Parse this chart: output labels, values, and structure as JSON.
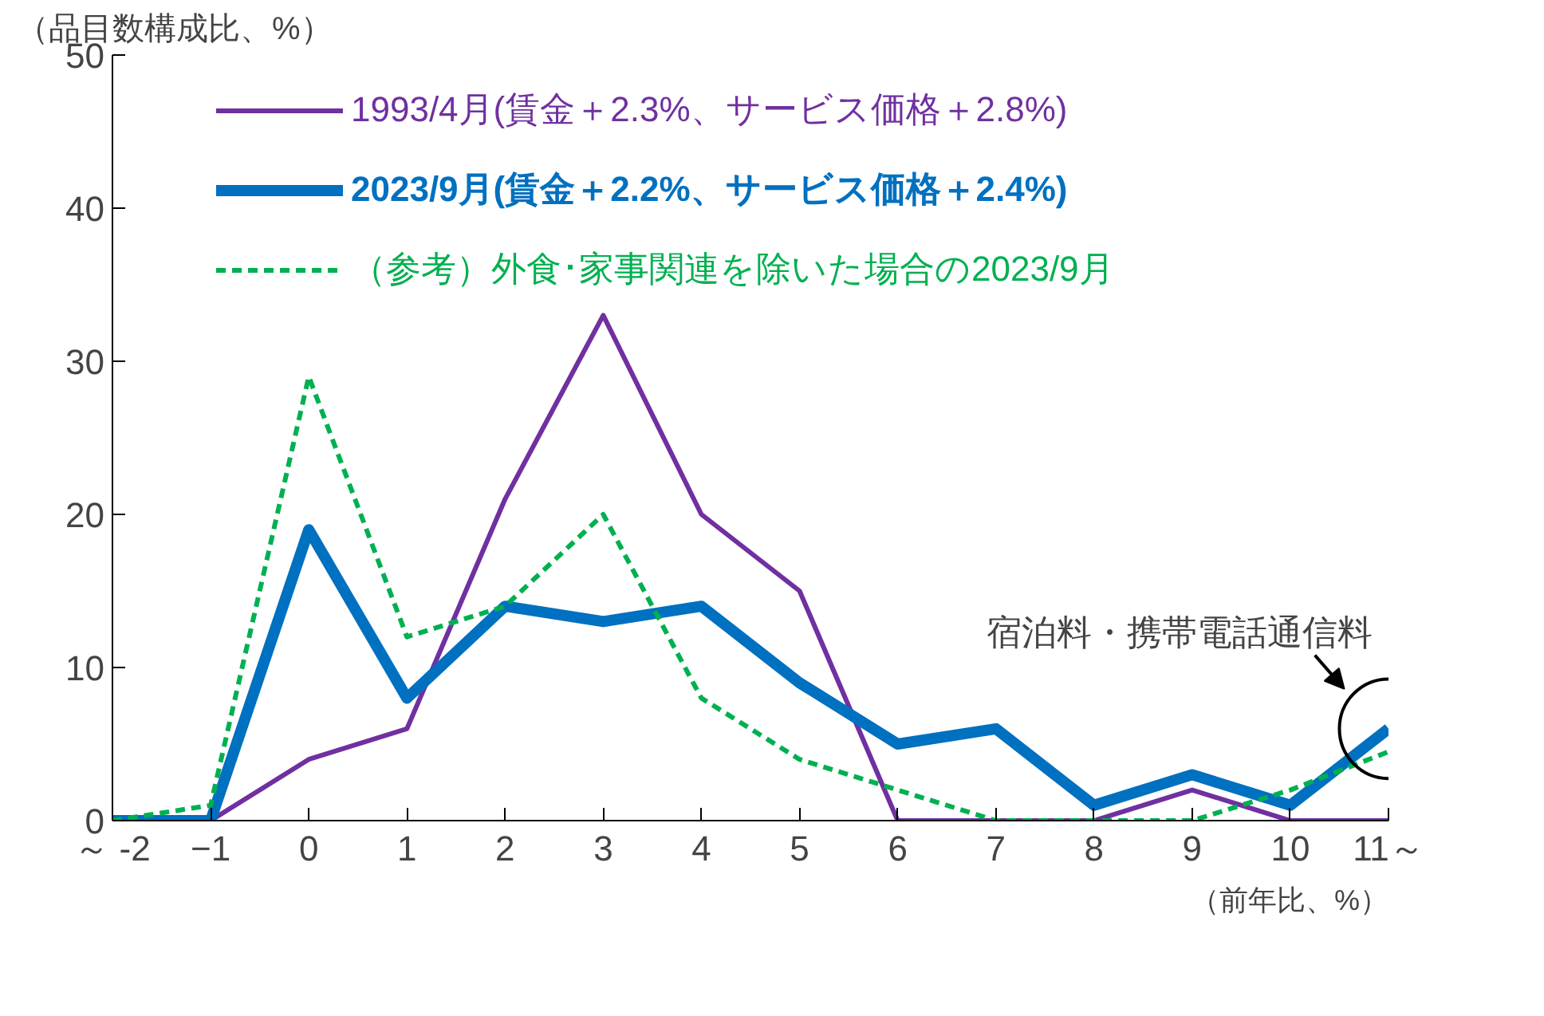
{
  "chart_data": {
    "type": "line",
    "title": "（品目数構成比、%）",
    "xlabel": "（前年比、%）",
    "x": [
      -2,
      -1,
      0,
      1,
      2,
      3,
      4,
      5,
      6,
      7,
      8,
      9,
      10,
      11
    ],
    "series": [
      {
        "name": "1993/4月(賃金＋2.3%、サービス価格＋2.8%)",
        "color": "#7030a0",
        "values": [
          0,
          0,
          4,
          6,
          21,
          33,
          20,
          15,
          0,
          0,
          0,
          2,
          0,
          0
        ]
      },
      {
        "name": "2023/9月(賃金＋2.2%、サービス価格＋2.4%)",
        "color": "#0070c0",
        "values": [
          0,
          0,
          19,
          8,
          14,
          13,
          14,
          9,
          5,
          6,
          1,
          3,
          1,
          6
        ]
      },
      {
        "name": "（参考）外食･家事関連を除いた場合の2023/9月",
        "color": "#00b050",
        "line_style": "dashed",
        "values": [
          0,
          1,
          29,
          12,
          14,
          20,
          8,
          4,
          2,
          0,
          0,
          0,
          2,
          4.5
        ]
      }
    ],
    "xlim": [
      -2,
      11
    ],
    "ylim": [
      0,
      50
    ],
    "xticks": [
      {
        "value": -2,
        "label": "～ -2"
      },
      -1,
      0,
      1,
      2,
      3,
      4,
      5,
      6,
      7,
      8,
      9,
      10,
      {
        "value": 11,
        "label": "11～"
      }
    ],
    "yticks": [
      0,
      10,
      20,
      30,
      40,
      50
    ],
    "annotations": [
      {
        "text": "宿泊料・携帯電話通信料",
        "x": 11,
        "y": 6
      }
    ],
    "grid": false,
    "legend": "top",
    "line_style": "solid",
    "marker": "none"
  }
}
